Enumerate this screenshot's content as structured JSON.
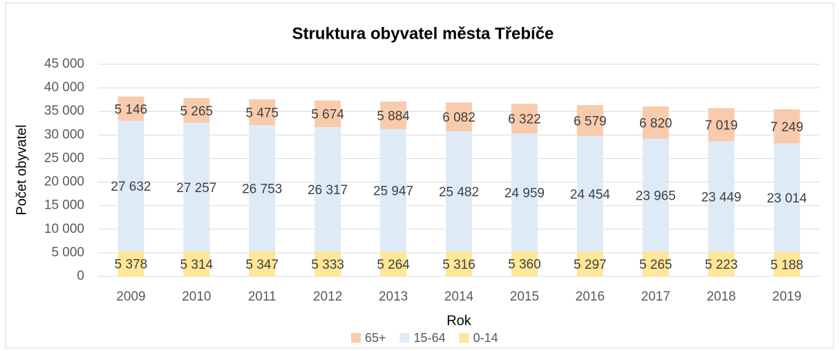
{
  "chart_data": {
    "type": "stacked_bar",
    "title": "Struktura obyvatel města Třebíče",
    "x_label": "Rok",
    "y_label": "Počet obyvatel",
    "categories": [
      "2009",
      "2010",
      "2011",
      "2012",
      "2013",
      "2014",
      "2015",
      "2016",
      "2017",
      "2018",
      "2019"
    ],
    "series": [
      {
        "name": "0-14",
        "color": "#ffe699",
        "values": [
          5378,
          5314,
          5347,
          5333,
          5264,
          5316,
          5360,
          5297,
          5265,
          5223,
          5188
        ],
        "value_labels": [
          "5 378",
          "5 314",
          "5 347",
          "5 333",
          "5 264",
          "5 316",
          "5 360",
          "5 297",
          "5 265",
          "5 223",
          "5 188"
        ]
      },
      {
        "name": "15-64",
        "color": "#deebf7",
        "values": [
          27632,
          27257,
          26753,
          26317,
          25947,
          25482,
          24959,
          24454,
          23965,
          23449,
          23014
        ],
        "value_labels": [
          "27 632",
          "27 257",
          "26 753",
          "26 317",
          "25 947",
          "25 482",
          "24 959",
          "24 454",
          "23 965",
          "23 449",
          "23 014"
        ]
      },
      {
        "name": "65+",
        "color": "#f8cbad",
        "values": [
          5146,
          5265,
          5475,
          5674,
          5884,
          6082,
          6322,
          6579,
          6820,
          7019,
          7249
        ],
        "value_labels": [
          "5 146",
          "5 265",
          "5 475",
          "5 674",
          "5 884",
          "6 082",
          "6 322",
          "6 579",
          "6 820",
          "7 019",
          "7 249"
        ]
      }
    ],
    "ylim": [
      0,
      45000
    ],
    "yticks": [
      0,
      {
        "value": 5000,
        "label": "5 000"
      },
      {
        "value": 10000,
        "label": "10 000"
      },
      {
        "value": 15000,
        "label": "15 000"
      },
      {
        "value": 20000,
        "label": "20 000"
      },
      {
        "value": 25000,
        "label": "25 000"
      },
      {
        "value": 30000,
        "label": "30 000"
      },
      {
        "value": 35000,
        "label": "35 000"
      },
      {
        "value": 40000,
        "label": "40 000"
      },
      {
        "value": 45000,
        "label": "45 000"
      }
    ],
    "grid": true,
    "legend": "bottom"
  }
}
